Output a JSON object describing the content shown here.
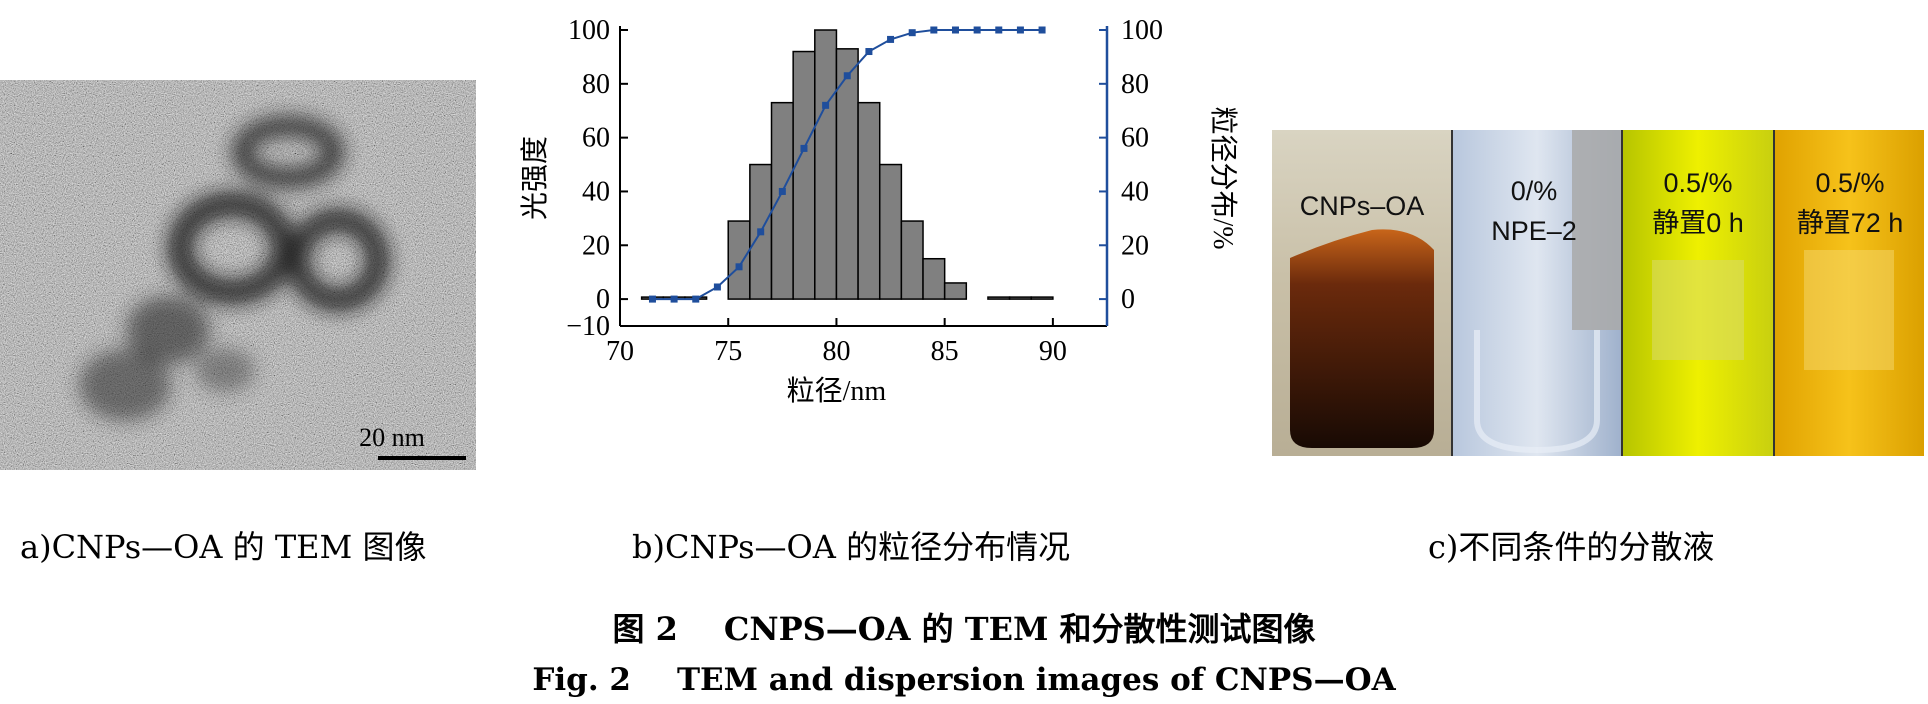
{
  "panel_a": {
    "scale_bar_label": "20 nm"
  },
  "chart_data": {
    "type": "bar",
    "x_axis": {
      "label": "粒径/nm",
      "range": [
        70,
        92.5
      ],
      "ticks": [
        70,
        75,
        80,
        85,
        90
      ]
    },
    "y_left": {
      "label": "光强度",
      "range": [
        -10,
        100
      ],
      "ticks": [
        -10,
        0,
        20,
        40,
        60,
        80,
        100
      ]
    },
    "y_right": {
      "label": "粒径分布/%",
      "range": [
        -10,
        100
      ],
      "ticks": [
        0,
        20,
        40,
        60,
        80,
        100
      ]
    },
    "bar_width": 1,
    "bars": {
      "x": [
        71.5,
        72.5,
        73.5,
        75.5,
        76.5,
        77.5,
        78.5,
        79.5,
        80.5,
        81.5,
        82.5,
        83.5,
        84.5,
        85.5,
        87.5,
        88.5,
        89.5
      ],
      "values": [
        0,
        0,
        0,
        29,
        50,
        73,
        92,
        100,
        93,
        73,
        50,
        29,
        15,
        6,
        0,
        0,
        0
      ]
    },
    "cumulative": {
      "x": [
        71.5,
        72.5,
        73.5,
        74.5,
        75.5,
        76.5,
        77.5,
        78.5,
        79.5,
        80.5,
        81.5,
        82.5,
        83.5,
        84.5,
        85.5,
        86.5,
        87.5,
        88.5,
        89.5
      ],
      "values": [
        0,
        0,
        0,
        4.5,
        12,
        25,
        40,
        56,
        72,
        83,
        92,
        96.5,
        99,
        100,
        100,
        100,
        100,
        100,
        100
      ]
    },
    "colors": {
      "bar": "#808080",
      "line": "#1f4e9c",
      "right_axis": "#1f4e9c"
    }
  },
  "panel_c": {
    "labels": [
      "CNPs–OA",
      "0/%",
      "NPE–2",
      "0.5/%",
      "静置0 h",
      "0.5/%",
      "静置72 h"
    ]
  },
  "captions": {
    "a": "a)CNPs—OA 的 TEM 图像",
    "b": "b)CNPs—OA 的粒径分布情况",
    "c": "c)不同条件的分散液"
  },
  "figure": {
    "cn_prefix": "图 2",
    "cn_text": "CNPS—OA 的 TEM 和分散性测试图像",
    "en_prefix": "Fig. 2",
    "en_text": "TEM and dispersion images of CNPS—OA"
  }
}
